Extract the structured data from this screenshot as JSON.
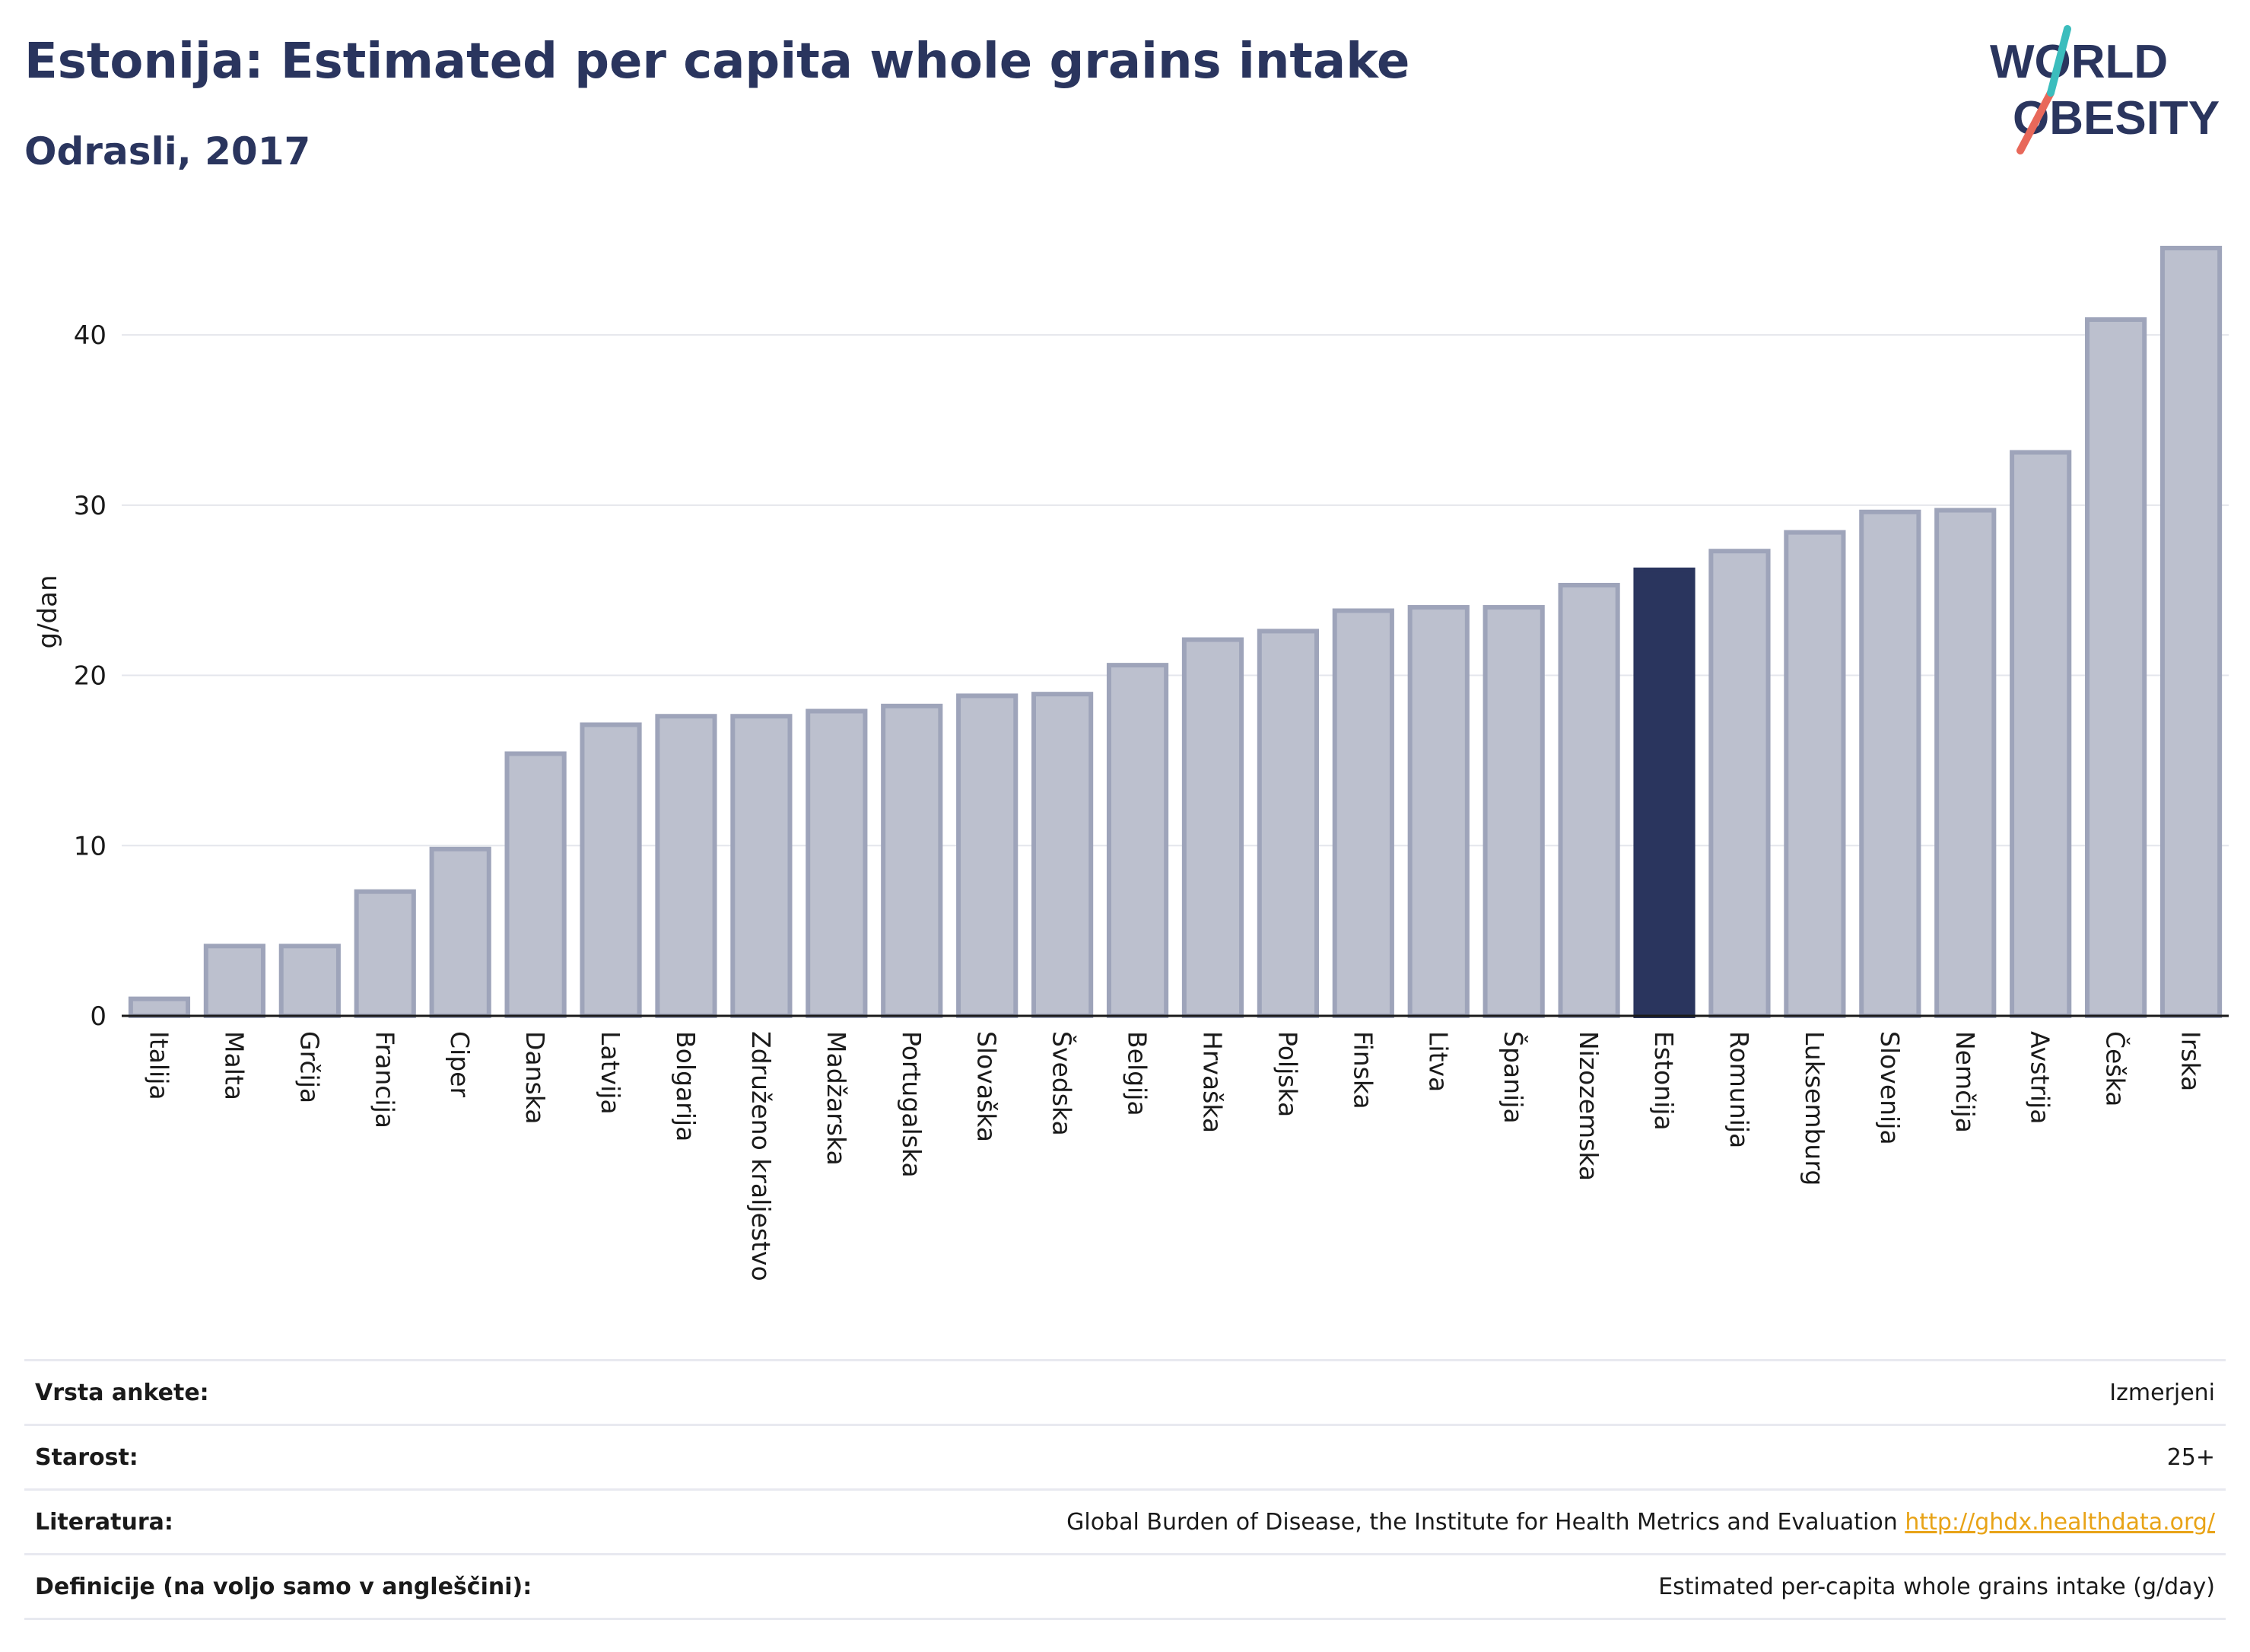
{
  "header": {
    "title": "Estonija: Estimated per capita whole grains intake",
    "subtitle": "Odrasli, 2017"
  },
  "logo": {
    "line1": "WORLD",
    "line2": "OBESITY"
  },
  "colors": {
    "bar": "#bcc0ce",
    "bar_edge": "#9ea4ba",
    "highlight": "#2a355e",
    "grid": "#e4e6ec"
  },
  "chart_data": {
    "type": "bar",
    "categories": [
      "Italija",
      "Malta",
      "Grčija",
      "Francija",
      "Ciper",
      "Danska",
      "Latvija",
      "Bolgarija",
      "Združeno kraljestvo",
      "Madžarska",
      "Portugalska",
      "Slovaška",
      "Švedska",
      "Belgija",
      "Hrvaška",
      "Poljska",
      "Finska",
      "Litva",
      "Španija",
      "Nizozemska",
      "Estonija",
      "Romunija",
      "Luksemburg",
      "Slovenija",
      "Nemčija",
      "Avstrija",
      "Češka",
      "Irska"
    ],
    "values": [
      1.0,
      4.1,
      4.1,
      7.3,
      9.8,
      15.4,
      17.1,
      17.6,
      17.6,
      17.9,
      18.2,
      18.8,
      18.9,
      20.6,
      22.1,
      22.6,
      23.8,
      24.0,
      24.0,
      25.3,
      26.2,
      27.3,
      28.4,
      29.6,
      29.7,
      33.1,
      40.9,
      45.1
    ],
    "highlight": "Estonija",
    "ylabel": "g/dan",
    "yticks": [
      0,
      10,
      20,
      30,
      40
    ],
    "ylim": [
      0,
      45.1
    ],
    "grid": true
  },
  "meta": [
    {
      "label": "Vrsta ankete:",
      "value": "Izmerjeni"
    },
    {
      "label": "Starost:",
      "value": "25+"
    },
    {
      "label": "Literatura:",
      "value": "Global Burden of Disease, the Institute for Health Metrics and Evaluation",
      "link": "http://ghdx.healthdata.org/"
    },
    {
      "label": "Definicije (na voljo samo v angleščini):",
      "value": "Estimated per-capita whole grains intake (g/day)"
    }
  ]
}
